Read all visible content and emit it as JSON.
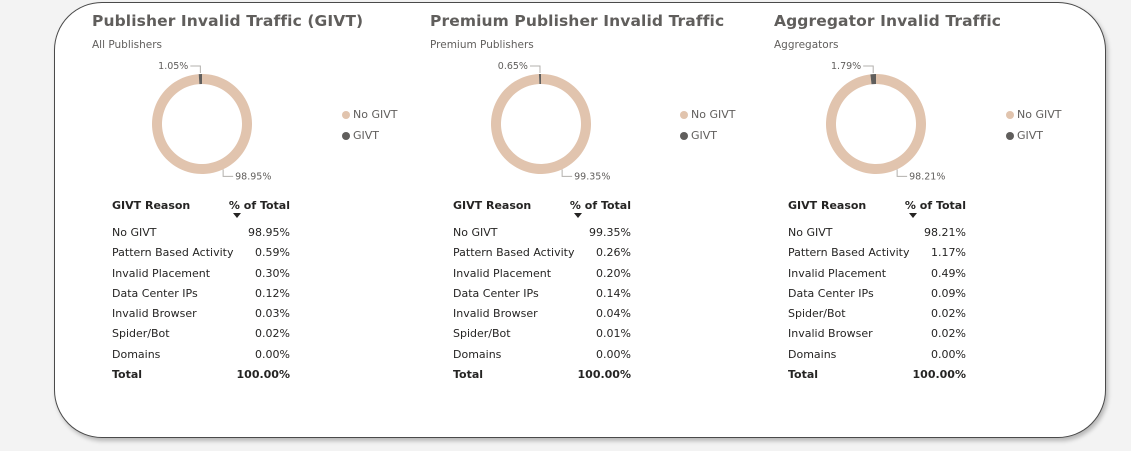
{
  "colors": {
    "no_givt": "#e1c4ae",
    "givt": "#605e5c"
  },
  "chart_data": [
    {
      "type": "pie",
      "variant": "donut",
      "title": "Publisher Invalid Traffic (GIVT)",
      "subtitle": "All Publishers",
      "categories": [
        "No GIVT",
        "GIVT"
      ],
      "values": [
        98.95,
        1.05
      ],
      "data_labels": [
        "98.95%",
        "1.05%"
      ],
      "legend": {
        "placement": "right",
        "entries": [
          "No GIVT",
          "GIVT"
        ]
      },
      "table": {
        "columns": [
          "GIVT Reason",
          "% of Total"
        ],
        "rows": [
          [
            "No GIVT",
            "98.95%"
          ],
          [
            "Pattern Based Activity",
            "0.59%"
          ],
          [
            "Invalid Placement",
            "0.30%"
          ],
          [
            "Data Center IPs",
            "0.12%"
          ],
          [
            "Invalid Browser",
            "0.03%"
          ],
          [
            "Spider/Bot",
            "0.02%"
          ],
          [
            "Domains",
            "0.00%"
          ]
        ],
        "total": [
          "Total",
          "100.00%"
        ]
      }
    },
    {
      "type": "pie",
      "variant": "donut",
      "title": "Premium Publisher Invalid Traffic",
      "subtitle": "Premium Publishers",
      "categories": [
        "No GIVT",
        "GIVT"
      ],
      "values": [
        99.35,
        0.65
      ],
      "data_labels": [
        "99.35%",
        "0.65%"
      ],
      "legend": {
        "placement": "right",
        "entries": [
          "No GIVT",
          "GIVT"
        ]
      },
      "table": {
        "columns": [
          "GIVT Reason",
          "% of Total"
        ],
        "rows": [
          [
            "No GIVT",
            "99.35%"
          ],
          [
            "Pattern Based Activity",
            "0.26%"
          ],
          [
            "Invalid Placement",
            "0.20%"
          ],
          [
            "Data Center IPs",
            "0.14%"
          ],
          [
            "Invalid Browser",
            "0.04%"
          ],
          [
            "Spider/Bot",
            "0.01%"
          ],
          [
            "Domains",
            "0.00%"
          ]
        ],
        "total": [
          "Total",
          "100.00%"
        ]
      }
    },
    {
      "type": "pie",
      "variant": "donut",
      "title": "Aggregator Invalid Traffic",
      "subtitle": "Aggregators",
      "categories": [
        "No GIVT",
        "GIVT"
      ],
      "values": [
        98.21,
        1.79
      ],
      "data_labels": [
        "98.21%",
        "1.79%"
      ],
      "legend": {
        "placement": "right",
        "entries": [
          "No GIVT",
          "GIVT"
        ]
      },
      "table": {
        "columns": [
          "GIVT Reason",
          "% of Total"
        ],
        "rows": [
          [
            "No GIVT",
            "98.21%"
          ],
          [
            "Pattern Based Activity",
            "1.17%"
          ],
          [
            "Invalid Placement",
            "0.49%"
          ],
          [
            "Data Center IPs",
            "0.09%"
          ],
          [
            "Spider/Bot",
            "0.02%"
          ],
          [
            "Invalid Browser",
            "0.02%"
          ],
          [
            "Domains",
            "0.00%"
          ]
        ],
        "total": [
          "Total",
          "100.00%"
        ]
      }
    }
  ]
}
